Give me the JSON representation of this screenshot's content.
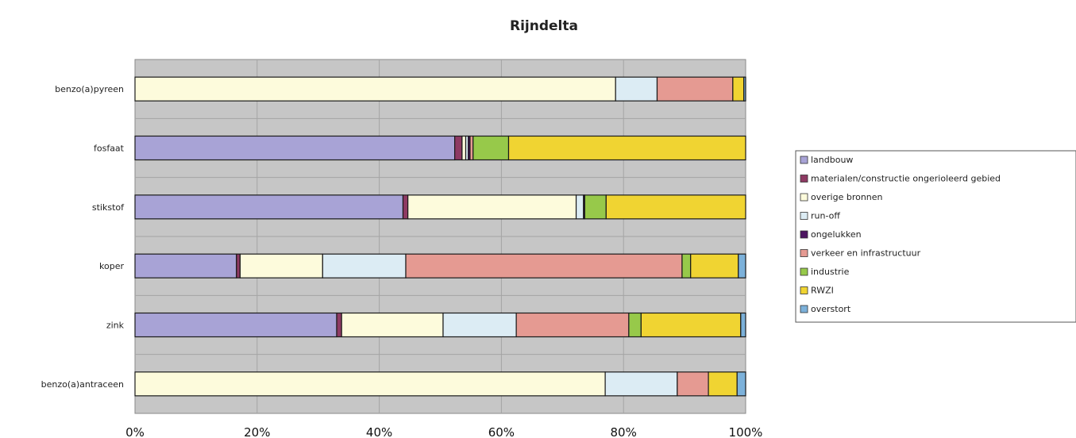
{
  "chart_data": {
    "type": "bar",
    "orientation": "horizontal",
    "stacked": "percent",
    "title": "Rijndelta",
    "xlabel": "",
    "ylabel": "",
    "xlim": [
      0,
      100
    ],
    "xticks": [
      "0%",
      "20%",
      "40%",
      "60%",
      "80%",
      "100%"
    ],
    "grid": true,
    "legend_position": "right",
    "categories": [
      "benzo(a)pyreen",
      "fosfaat",
      "stikstof",
      "koper",
      "zink",
      "benzo(a)antraceen"
    ],
    "series": [
      {
        "name": "landbouw",
        "color": "#a8a3d6",
        "values": [
          0,
          52.2,
          43.8,
          16.6,
          32.8,
          0
        ]
      },
      {
        "name": "materialen/constructie ongerioleerd gebied",
        "color": "#8e3a63",
        "values": [
          0,
          1.2,
          0.8,
          0.6,
          0.8,
          0
        ]
      },
      {
        "name": "overige bronnen",
        "color": "#fdfbdc",
        "values": [
          78.7,
          0.6,
          27.5,
          13.5,
          16.5,
          77.0
        ]
      },
      {
        "name": "run-off",
        "color": "#dcecf4",
        "values": [
          6.8,
          0.4,
          1.2,
          13.6,
          11.9,
          11.8
        ]
      },
      {
        "name": "ongelukken",
        "color": "#4d1561",
        "values": [
          0,
          0.3,
          0.2,
          0,
          0,
          0
        ]
      },
      {
        "name": "verkeer en infrastructuur",
        "color": "#e59a92",
        "values": [
          12.4,
          0.5,
          0,
          45.2,
          18.3,
          5.1
        ]
      },
      {
        "name": "industrie",
        "color": "#97c94a",
        "values": [
          0,
          5.8,
          3.5,
          1.4,
          2.0,
          0
        ]
      },
      {
        "name": "RWZI",
        "color": "#f0d432",
        "values": [
          1.8,
          38.7,
          22.8,
          7.8,
          16.2,
          4.7
        ]
      },
      {
        "name": "overstort",
        "color": "#7cb1da",
        "values": [
          0.3,
          0,
          0,
          1.2,
          0.8,
          1.4
        ]
      }
    ]
  }
}
